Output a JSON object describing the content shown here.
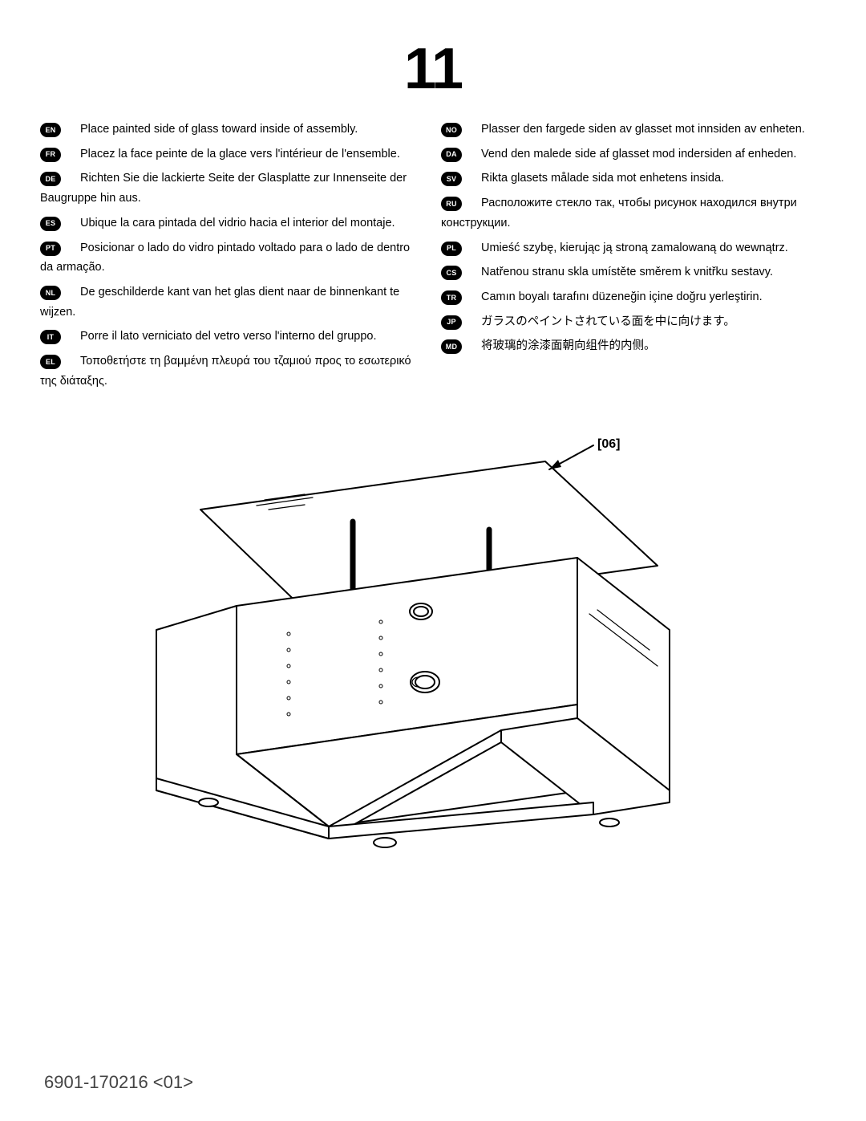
{
  "step_number": "11",
  "footer": "6901-170216 <01>",
  "part_label": "[06]",
  "left_column": [
    {
      "code": "EN",
      "text": "Place painted side of glass toward inside of assembly."
    },
    {
      "code": "FR",
      "text": "Placez la face peinte de la glace vers l'intérieur de l'ensemble."
    },
    {
      "code": "DE",
      "text": "Richten Sie die lackierte Seite der Glasplatte zur Innenseite der Baugruppe hin aus."
    },
    {
      "code": "ES",
      "text": "Ubique la cara pintada del vidrio hacia el interior del montaje."
    },
    {
      "code": "PT",
      "text": "Posicionar o lado do vidro pintado voltado para o lado de dentro da armação."
    },
    {
      "code": "NL",
      "text": "De geschilderde kant van het glas dient naar de binnenkant te wijzen."
    },
    {
      "code": "IT",
      "text": "Porre il lato verniciato del vetro verso l'interno del gruppo."
    },
    {
      "code": "EL",
      "text": "Τοποθετήστε τη βαμμένη πλευρά του τζαμιού προς το εσωτερικό της διάταξης."
    }
  ],
  "right_column": [
    {
      "code": "NO",
      "text": "Plasser den fargede siden av glasset mot innsiden av enheten."
    },
    {
      "code": "DA",
      "text": "Vend den malede side af glasset mod indersiden af enheden."
    },
    {
      "code": "SV",
      "text": "Rikta glasets målade sida mot enhetens insida."
    },
    {
      "code": "RU",
      "text": "Расположите стекло так, чтобы рисунок находился внутри конструкции."
    },
    {
      "code": "PL",
      "text": "Umieść szybę, kierując ją stroną zamalowaną do wewnątrz."
    },
    {
      "code": "CS",
      "text": "Natřenou stranu skla umístěte směrem k vnitřku sestavy."
    },
    {
      "code": "TR",
      "text": "Camın boyalı tarafını düzeneğin içine doğru yerleştirin."
    },
    {
      "code": "JP",
      "text": "ガラスのペイントされている面を中に向けます。"
    },
    {
      "code": "MD",
      "text": "将玻璃的涂漆面朝向组件的内侧。"
    }
  ],
  "style": {
    "page_bg": "#ffffff",
    "text_color": "#000000",
    "badge_bg": "#000000",
    "badge_fg": "#ffffff",
    "footer_color": "#444444",
    "step_fontsize": 72,
    "body_fontsize": 14.5,
    "footer_fontsize": 22,
    "line_stroke": "#000000",
    "line_stroke_width": 2
  }
}
